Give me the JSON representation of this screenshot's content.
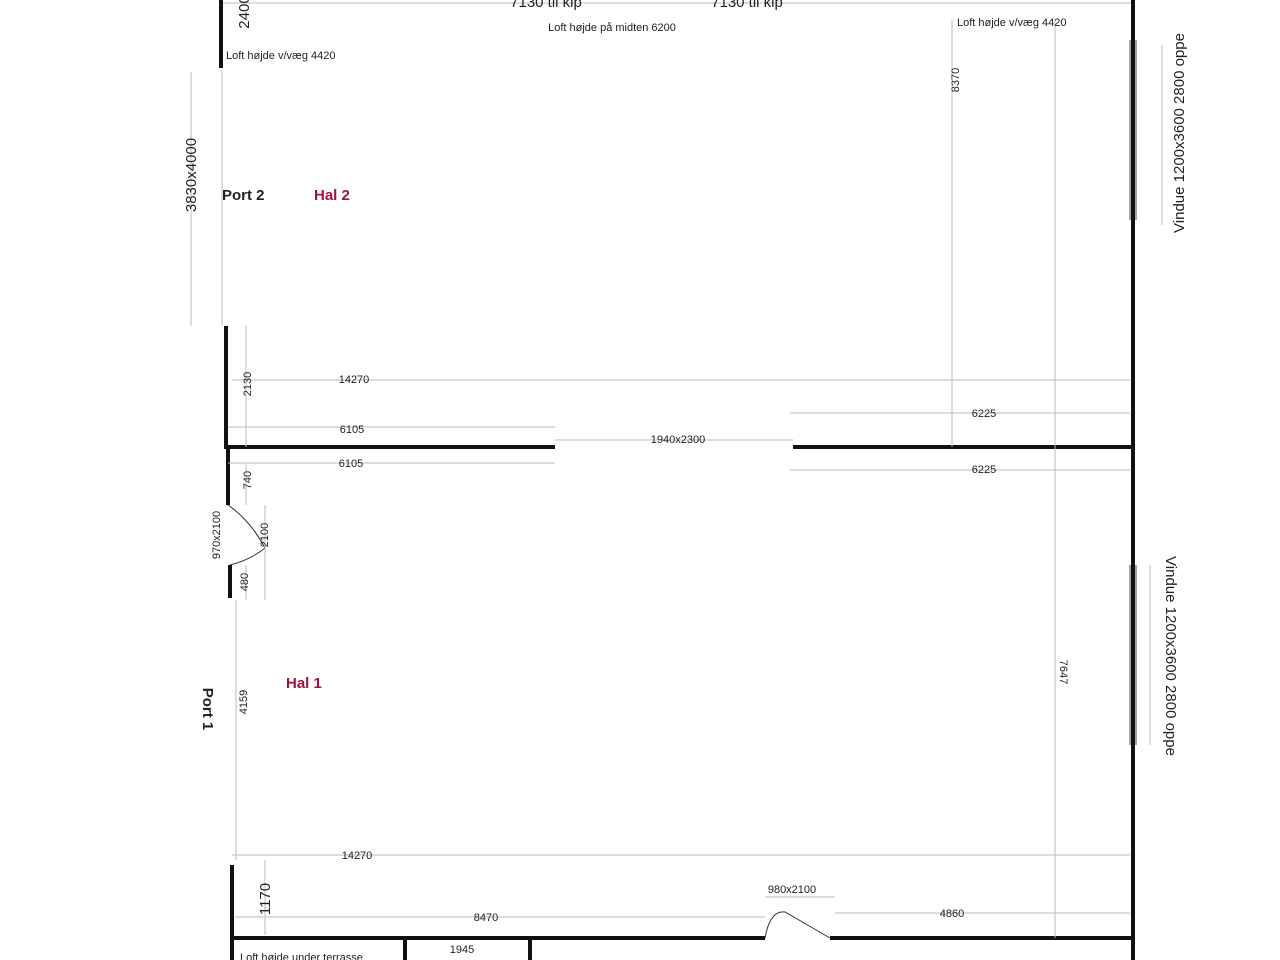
{
  "labels": {
    "dim_2400": "2400",
    "kip_left": "7130 til kip",
    "kip_right": "7130 til kip",
    "ceiling_mid": "Loft højde på midten 6200",
    "ceiling_wall_left": "Loft højde v/væg 4420",
    "ceiling_wall_right": "Loft højde v/væg 4420",
    "dim_8370": "8370",
    "window_top": "Vindue 1200x3600 2800 oppe",
    "port2_size": "3830x4000",
    "port2": "Port 2",
    "hal2": "Hal 2",
    "dim_2130": "2130",
    "dim_14270_top": "14270",
    "dim_6105_a": "6105",
    "dim_6105_b": "6105",
    "opening": "1940x2300",
    "dim_6225_a": "6225",
    "dim_6225_b": "6225",
    "dim_740": "740",
    "door_left": "970x2100",
    "dim_2100": "2100",
    "dim_480": "480",
    "hal1": "Hal 1",
    "port1": "Port 1",
    "dim_4159": "4159",
    "window_bottom": "Vindue 1200x3600 2800 oppe",
    "dim_7647": "7647",
    "dim_14270_bottom": "14270",
    "dim_1170": "1170",
    "dim_8470": "8470",
    "door_bottom": "980x2100",
    "dim_4860": "4860",
    "dim_1945": "1945",
    "ceiling_terrace": "Loft højde under terrasse"
  }
}
